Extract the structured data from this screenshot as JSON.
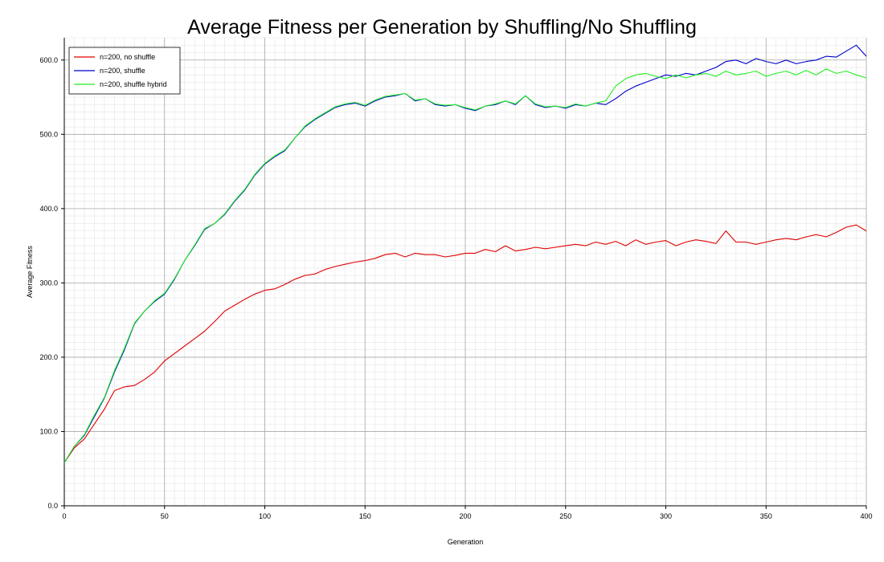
{
  "chart_data": {
    "type": "line",
    "title": "Average Fitness per Generation by Shuffling/No Shuffling",
    "xlabel": "Generation",
    "ylabel": "Average Fitness",
    "xlim": [
      0,
      400
    ],
    "ylim": [
      0,
      630
    ],
    "x_ticks": [
      0,
      50,
      100,
      150,
      200,
      250,
      300,
      350,
      400
    ],
    "y_ticks": [
      0,
      100,
      200,
      300,
      400,
      500,
      600
    ],
    "y_tick_labels": [
      "0.0",
      "100.0",
      "200.0",
      "300.0",
      "400.0",
      "500.0",
      "600.0"
    ],
    "grid": true,
    "legend_position": "top-left",
    "series": [
      {
        "name": "n=200, no shuffle",
        "color": "#e00000",
        "x": [
          0,
          5,
          10,
          15,
          20,
          25,
          30,
          35,
          40,
          45,
          50,
          55,
          60,
          65,
          70,
          75,
          80,
          85,
          90,
          95,
          100,
          105,
          110,
          115,
          120,
          125,
          130,
          135,
          140,
          145,
          150,
          155,
          160,
          165,
          170,
          175,
          180,
          185,
          190,
          195,
          200,
          205,
          210,
          215,
          220,
          225,
          230,
          235,
          240,
          245,
          250,
          255,
          260,
          265,
          270,
          275,
          280,
          285,
          290,
          295,
          300,
          305,
          310,
          315,
          320,
          325,
          330,
          335,
          340,
          345,
          350,
          355,
          360,
          365,
          370,
          375,
          380,
          385,
          390,
          395,
          400
        ],
        "y": [
          58,
          78,
          90,
          110,
          130,
          155,
          160,
          162,
          170,
          180,
          195,
          205,
          215,
          225,
          235,
          248,
          262,
          270,
          278,
          285,
          290,
          292,
          298,
          305,
          310,
          312,
          318,
          322,
          325,
          328,
          330,
          333,
          338,
          340,
          335,
          340,
          338,
          338,
          335,
          337,
          340,
          340,
          345,
          342,
          350,
          343,
          345,
          348,
          346,
          348,
          350,
          352,
          350,
          355,
          352,
          356,
          350,
          358,
          352,
          355,
          357,
          350,
          355,
          358,
          356,
          353,
          370,
          355,
          355,
          352,
          355,
          358,
          360,
          358,
          362,
          365,
          362,
          368,
          375,
          378,
          370
        ]
      },
      {
        "name": "n=200, shuffle",
        "color": "#0000cc",
        "x": [
          0,
          5,
          10,
          15,
          20,
          25,
          30,
          35,
          40,
          45,
          50,
          55,
          60,
          65,
          70,
          75,
          80,
          85,
          90,
          95,
          100,
          105,
          110,
          115,
          120,
          125,
          130,
          135,
          140,
          145,
          150,
          155,
          160,
          165,
          170,
          175,
          180,
          185,
          190,
          195,
          200,
          205,
          210,
          215,
          220,
          225,
          230,
          235,
          240,
          245,
          250,
          255,
          260,
          265,
          270,
          275,
          280,
          285,
          290,
          295,
          300,
          305,
          310,
          315,
          320,
          325,
          330,
          335,
          340,
          345,
          350,
          355,
          360,
          365,
          370,
          375,
          380,
          385,
          390,
          395,
          400
        ],
        "y": [
          58,
          80,
          95,
          120,
          145,
          180,
          210,
          245,
          262,
          275,
          285,
          305,
          330,
          350,
          372,
          380,
          392,
          410,
          425,
          445,
          460,
          470,
          478,
          495,
          510,
          520,
          528,
          536,
          540,
          542,
          538,
          545,
          550,
          552,
          555,
          545,
          548,
          540,
          538,
          540,
          535,
          532,
          538,
          540,
          545,
          540,
          552,
          540,
          536,
          538,
          535,
          540,
          538,
          542,
          540,
          548,
          558,
          565,
          570,
          575,
          580,
          578,
          582,
          580,
          585,
          590,
          598,
          600,
          595,
          602,
          598,
          595,
          600,
          595,
          598,
          600,
          605,
          604,
          612,
          620,
          605
        ]
      },
      {
        "name": "n=200, shuffle hybrid",
        "color": "#22ee22",
        "x": [
          0,
          5,
          10,
          15,
          20,
          25,
          30,
          35,
          40,
          45,
          50,
          55,
          60,
          65,
          70,
          75,
          80,
          85,
          90,
          95,
          100,
          105,
          110,
          115,
          120,
          125,
          130,
          135,
          140,
          145,
          150,
          155,
          160,
          165,
          170,
          175,
          180,
          185,
          190,
          195,
          200,
          205,
          210,
          215,
          220,
          225,
          230,
          235,
          240,
          245,
          250,
          255,
          260,
          265,
          270,
          275,
          280,
          285,
          290,
          295,
          300,
          305,
          310,
          315,
          320,
          325,
          330,
          335,
          340,
          345,
          350,
          355,
          360,
          365,
          370,
          375,
          380,
          385,
          390,
          395,
          400
        ],
        "y": [
          58,
          80,
          96,
          122,
          146,
          182,
          212,
          246,
          262,
          276,
          286,
          306,
          330,
          351,
          373,
          380,
          393,
          411,
          426,
          446,
          461,
          471,
          479,
          495,
          511,
          521,
          529,
          537,
          541,
          543,
          539,
          546,
          551,
          553,
          555,
          546,
          548,
          541,
          539,
          540,
          536,
          533,
          538,
          541,
          545,
          541,
          552,
          541,
          537,
          538,
          536,
          541,
          538,
          542,
          545,
          565,
          575,
          580,
          582,
          578,
          575,
          580,
          576,
          580,
          582,
          578,
          585,
          580,
          582,
          585,
          578,
          582,
          585,
          580,
          586,
          580,
          588,
          582,
          585,
          580,
          576
        ]
      }
    ]
  }
}
